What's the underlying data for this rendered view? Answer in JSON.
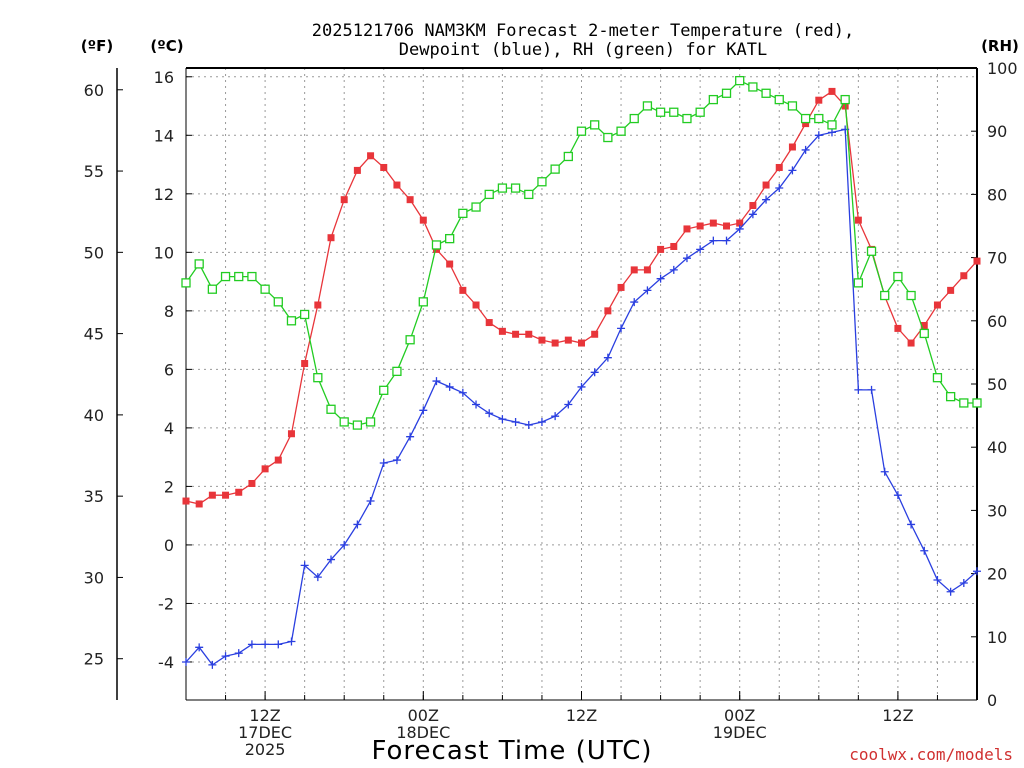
{
  "chart_data": {
    "type": "line",
    "title_line1": "2025121706 NAM3KM Forecast 2-meter Temperature (red),",
    "title_line2": "Dewpoint (blue), RH (green) for KATL",
    "xlabel": "Forecast Time (UTC)",
    "credit": "coolwx.com/models",
    "units": {
      "fahrenheit": "(ºF)",
      "celsius": "(ºC)",
      "rh": "(RH)"
    },
    "x_range_hours": [
      0,
      60
    ],
    "x_ticks": [
      {
        "hour": 6,
        "lines": [
          "12Z",
          "17DEC",
          "2025"
        ]
      },
      {
        "hour": 18,
        "lines": [
          "00Z",
          "18DEC"
        ]
      },
      {
        "hour": 30,
        "lines": [
          "12Z"
        ]
      },
      {
        "hour": 42,
        "lines": [
          "00Z",
          "19DEC"
        ]
      },
      {
        "hour": 54,
        "lines": [
          "12Z"
        ]
      }
    ],
    "y_celsius": {
      "range": [
        -5.3,
        16.3
      ],
      "ticks": [
        -4,
        -2,
        0,
        2,
        4,
        6,
        8,
        10,
        12,
        14,
        16
      ]
    },
    "y_fahrenheit": {
      "ticks": [
        25,
        30,
        35,
        40,
        45,
        50,
        55,
        60
      ]
    },
    "y_rh": {
      "range": [
        0,
        100
      ],
      "ticks": [
        0,
        10,
        20,
        30,
        40,
        50,
        60,
        70,
        80,
        90,
        100
      ]
    },
    "series": [
      {
        "name": "2-meter Temperature",
        "unit": "C",
        "color": "#e8353a",
        "marker": "filled-square",
        "values": [
          1.5,
          1.4,
          1.7,
          1.7,
          1.8,
          2.1,
          2.6,
          2.9,
          3.8,
          6.2,
          8.2,
          10.5,
          11.8,
          12.8,
          13.3,
          12.9,
          12.3,
          11.8,
          11.1,
          10.1,
          9.6,
          8.7,
          8.2,
          7.6,
          7.3,
          7.2,
          7.2,
          7.0,
          6.9,
          7.0,
          6.9,
          7.2,
          8.0,
          8.8,
          9.4,
          9.4,
          10.1,
          10.2,
          10.8,
          10.9,
          11.0,
          10.9,
          11.0,
          11.6,
          12.3,
          12.9,
          13.6,
          14.4,
          15.2,
          15.5,
          15.0,
          11.1,
          10.1,
          8.5,
          7.4,
          6.9,
          7.5,
          8.2,
          8.7,
          9.2,
          9.7
        ]
      },
      {
        "name": "Dewpoint",
        "unit": "C",
        "color": "#2a3fe0",
        "marker": "plus",
        "values": [
          -4.0,
          -3.5,
          -4.1,
          -3.8,
          -3.7,
          -3.4,
          -3.4,
          -3.4,
          -3.3,
          -0.7,
          -1.1,
          -0.5,
          0.0,
          0.7,
          1.5,
          2.8,
          2.9,
          3.7,
          4.6,
          5.6,
          5.4,
          5.2,
          4.8,
          4.5,
          4.3,
          4.2,
          4.1,
          4.2,
          4.4,
          4.8,
          5.4,
          5.9,
          6.4,
          7.4,
          8.3,
          8.7,
          9.1,
          9.4,
          9.8,
          10.1,
          10.4,
          10.4,
          10.8,
          11.3,
          11.8,
          12.2,
          12.8,
          13.5,
          14.0,
          14.1,
          14.2,
          5.3,
          5.3,
          2.5,
          1.7,
          0.7,
          -0.2,
          -1.2,
          -1.6,
          -1.3,
          -0.9
        ]
      },
      {
        "name": "Relative Humidity",
        "unit": "%",
        "color": "#22cc22",
        "marker": "open-square",
        "values": [
          66,
          69,
          65,
          67,
          67,
          67,
          65,
          63,
          60,
          61,
          51,
          46,
          44,
          43.5,
          44,
          49,
          52,
          57,
          63,
          72,
          73,
          77,
          78,
          80,
          81,
          81,
          80,
          82,
          84,
          86,
          90,
          91,
          89,
          90,
          92,
          94,
          93,
          93,
          92,
          93,
          95,
          96,
          98,
          97,
          96,
          95,
          94,
          92,
          92,
          91,
          95,
          66,
          71,
          64,
          67,
          64,
          58,
          51,
          48,
          47,
          47
        ]
      }
    ]
  }
}
